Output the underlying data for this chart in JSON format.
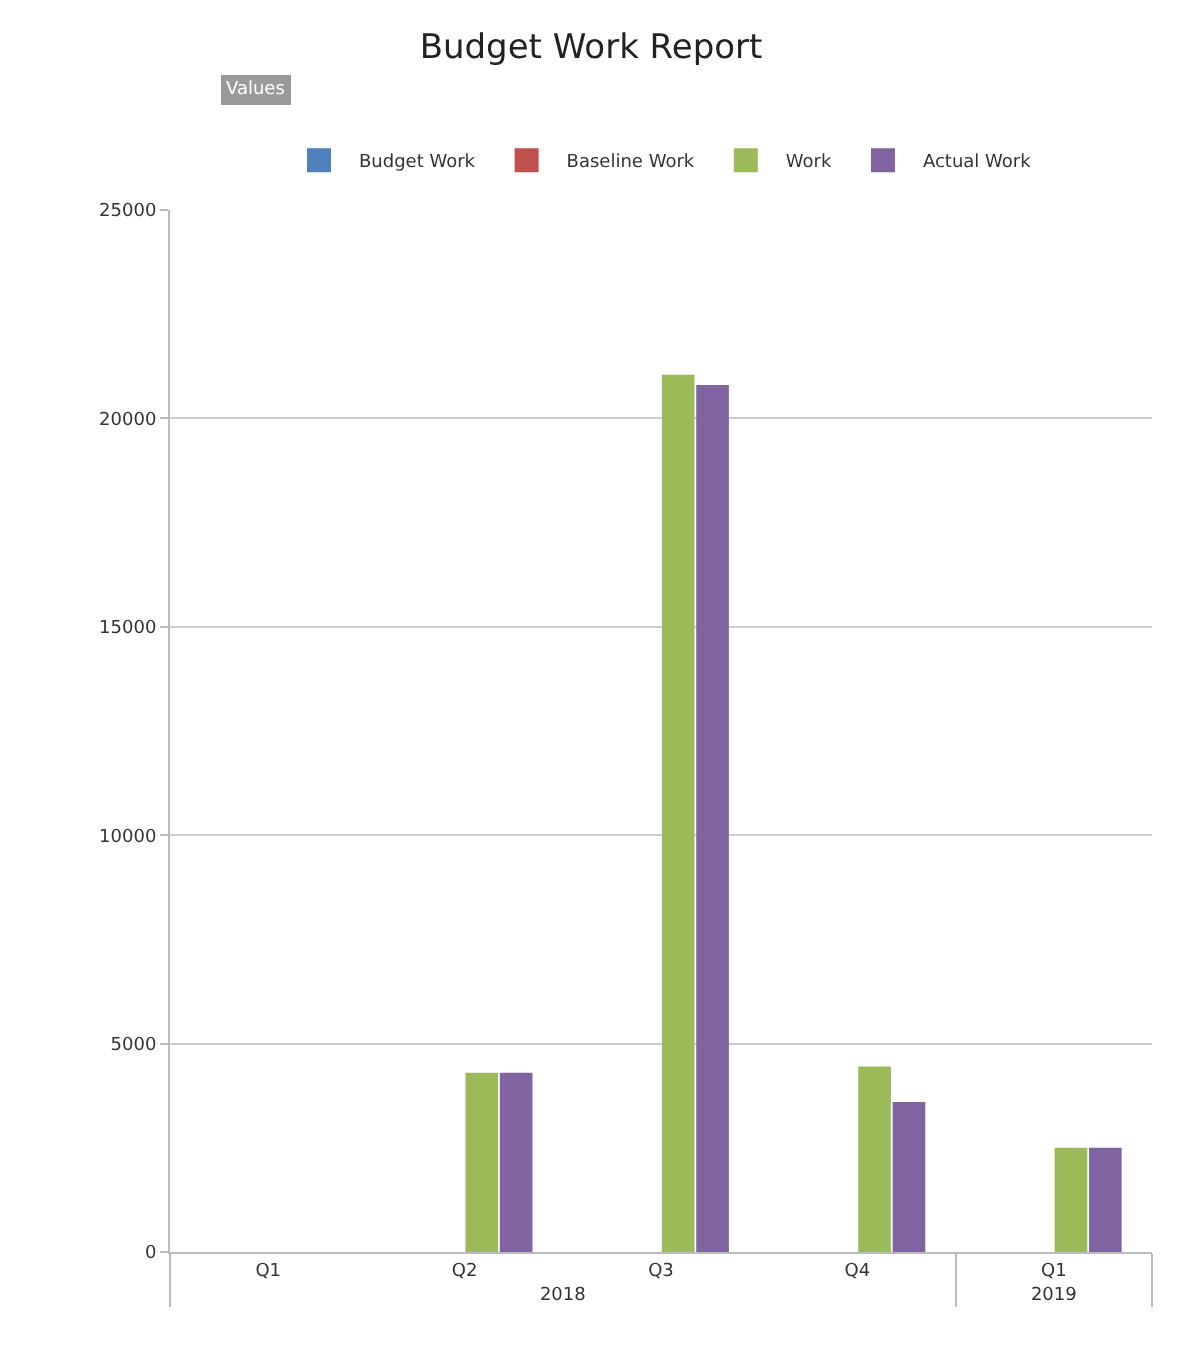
{
  "chart_data": {
    "type": "bar",
    "title": "Budget Work Report",
    "annotations": [
      "Values",
      "2018",
      "2019"
    ],
    "categories": [
      "Q1",
      "Q2",
      "Q3",
      "Q4",
      "Q1"
    ],
    "series": [
      {
        "name": "Budget Work",
        "color": "#4f81bd",
        "values": [
          0,
          0,
          0,
          0,
          0
        ]
      },
      {
        "name": "Baseline Work",
        "color": "#c0504d",
        "values": [
          0,
          0,
          0,
          0,
          0
        ]
      },
      {
        "name": "Work",
        "color": "#9bbb59",
        "values": [
          0,
          4300,
          21050,
          4450,
          2500
        ]
      },
      {
        "name": "Actual Work",
        "color": "#8064a2",
        "values": [
          0,
          4300,
          20800,
          3600,
          2500
        ]
      }
    ],
    "ylim": [
      0,
      25000
    ],
    "yticks": [
      0,
      5000,
      10000,
      15000,
      20000,
      25000
    ],
    "grid": "y",
    "legend": "top"
  }
}
